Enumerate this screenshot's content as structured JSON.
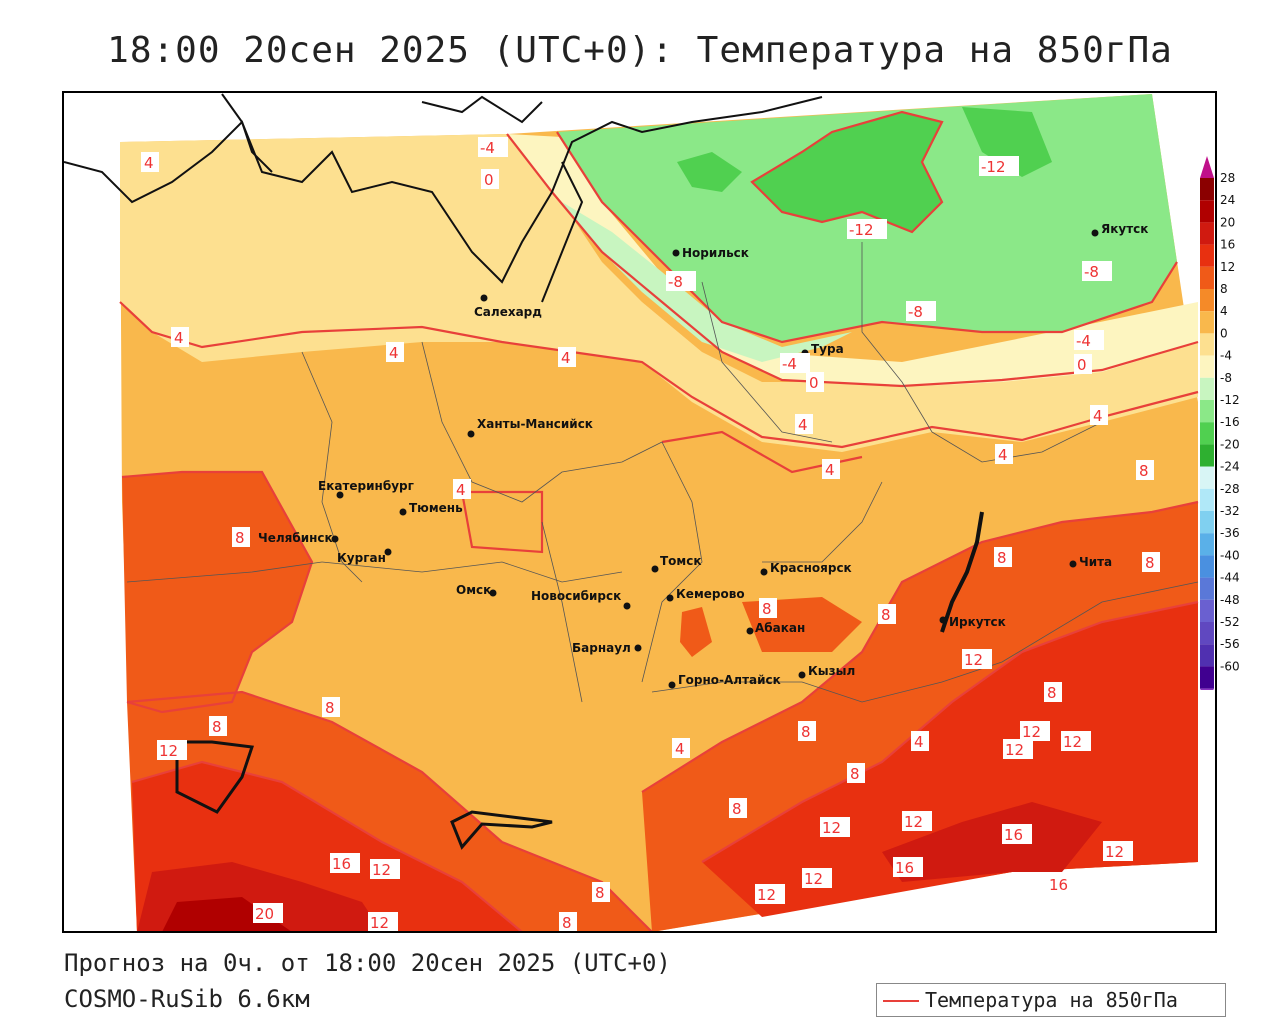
{
  "title": "18:00 20сен 2025 (UTC+0): Температура на 850гПа",
  "footer": {
    "forecast": "Прогноз на 0ч. от 18:00 20сен 2025 (UTC+0)",
    "model": "COSMO-RuSib 6.6км"
  },
  "key": {
    "label": "Температура на 850гПа",
    "line_color": "#e8403a"
  },
  "legend": {
    "values": [
      "28",
      "24",
      "20",
      "16",
      "12",
      "8",
      "4",
      "0",
      "-4",
      "-8",
      "-12",
      "-16",
      "-20",
      "-24",
      "-28",
      "-32",
      "-36",
      "-40",
      "-44",
      "-48",
      "-52",
      "-56",
      "-60"
    ],
    "colors": [
      "#8b0000",
      "#b00000",
      "#d01a10",
      "#e83010",
      "#f05a18",
      "#f58a28",
      "#f9b84c",
      "#fde090",
      "#fdf5c0",
      "#c8f5c0",
      "#8be888",
      "#50d050",
      "#2eb030",
      "#d8f5f5",
      "#b0e8f8",
      "#80d0f0",
      "#5ab0e8",
      "#4a90e0",
      "#5a78d8",
      "#6a60d0",
      "#6048c0",
      "#5030b0",
      "#400090"
    ]
  },
  "cities": [
    {
      "name": "Норильск"
    },
    {
      "name": "Якутск"
    },
    {
      "name": "Салехард"
    },
    {
      "name": "Тура"
    },
    {
      "name": "Ханты-Мансийск"
    },
    {
      "name": "Екатеринбург"
    },
    {
      "name": "Тюмень"
    },
    {
      "name": "Челябинск"
    },
    {
      "name": "Курган"
    },
    {
      "name": "Омск"
    },
    {
      "name": "Томск"
    },
    {
      "name": "Красноярск"
    },
    {
      "name": "Новосибирск"
    },
    {
      "name": "Кемерово"
    },
    {
      "name": "Абакан"
    },
    {
      "name": "Иркутск"
    },
    {
      "name": "Чита"
    },
    {
      "name": "Барнаул"
    },
    {
      "name": "Горно-Алтайск"
    },
    {
      "name": "Кызыл"
    }
  ],
  "isotherm_labels": [
    "-4",
    "0",
    "4",
    "-12",
    "-12",
    "-8",
    "-8",
    "-8",
    "-4",
    "0",
    "-4",
    "0",
    "4",
    "4",
    "4",
    "4",
    "4",
    "4",
    "4",
    "4",
    "8",
    "8",
    "8",
    "8",
    "8",
    "8",
    "8",
    "8",
    "8",
    "8",
    "8",
    "8",
    "12",
    "12",
    "12",
    "12",
    "12",
    "12",
    "12",
    "12",
    "12",
    "12",
    "12",
    "16",
    "16",
    "16",
    "16",
    "20",
    "4",
    "8",
    "4",
    "12",
    "8"
  ]
}
